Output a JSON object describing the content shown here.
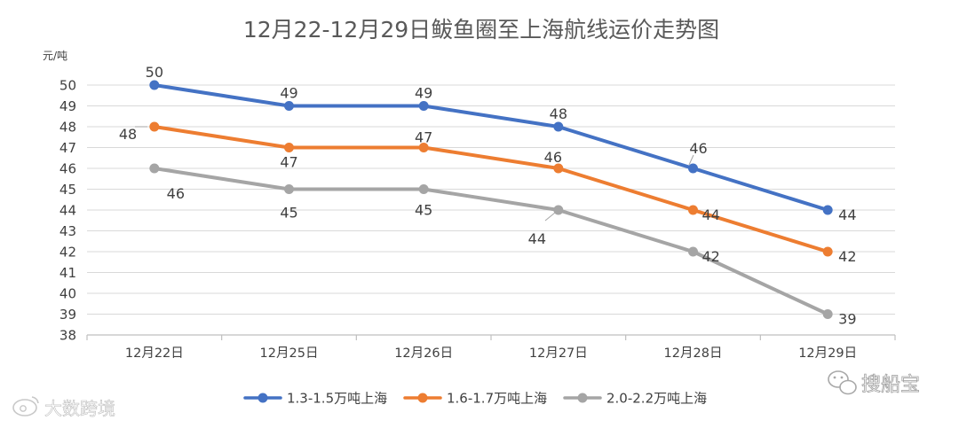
{
  "chart_data": {
    "type": "line",
    "title": "12月22-12月29日鲅鱼圈至上海航线运价走势图",
    "ylabel": "元/吨",
    "xlabel": "",
    "categories": [
      "12月22日",
      "12月25日",
      "12月26日",
      "12月27日",
      "12月28日",
      "12月29日"
    ],
    "ylim": [
      38,
      50
    ],
    "yticks": [
      38,
      39,
      40,
      41,
      42,
      43,
      44,
      45,
      46,
      47,
      48,
      49,
      50
    ],
    "grid": true,
    "legend_position": "bottom",
    "series": [
      {
        "name": "1.3-1.5万吨上海",
        "color": "#4472C4",
        "values": [
          50,
          49,
          49,
          48,
          46,
          44
        ],
        "labels": [
          "50",
          "49",
          "49",
          "48",
          "46",
          "44"
        ]
      },
      {
        "name": "1.6-1.7万吨上海",
        "color": "#ED7D31",
        "values": [
          48,
          47,
          47,
          46,
          44,
          42
        ],
        "labels": [
          "48",
          "47",
          "47",
          "46",
          "44",
          "42"
        ]
      },
      {
        "name": "2.0-2.2万吨上海",
        "color": "#A5A5A5",
        "values": [
          46,
          45,
          45,
          44,
          42,
          39
        ],
        "labels": [
          "46",
          "45",
          "45",
          "44",
          "42",
          "39"
        ]
      }
    ]
  },
  "watermarks": {
    "left": "大数跨境",
    "right": "搜船宝"
  }
}
